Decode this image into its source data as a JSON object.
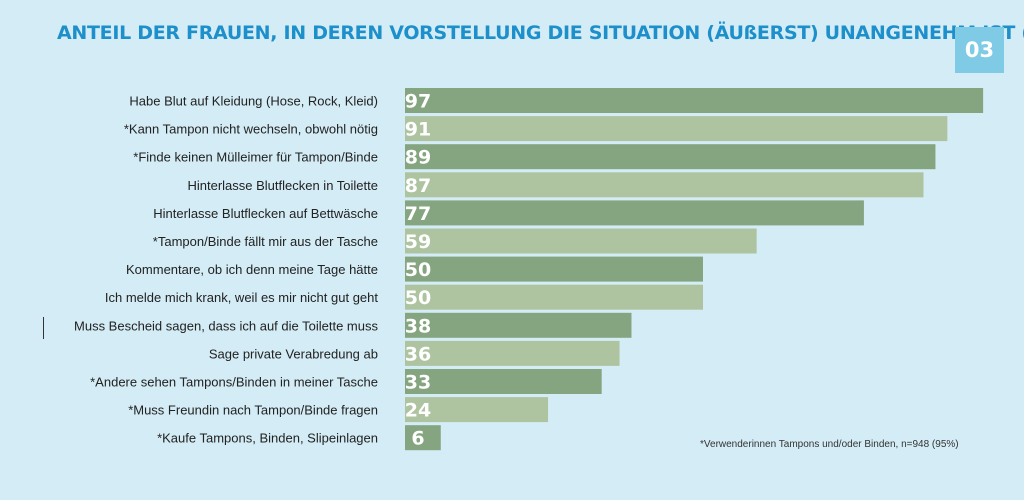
{
  "header": {
    "title": "ANTEIL DER FRAUEN, IN DEREN VORSTELLUNG DIE SITUATION (ÄUßERST) UNANGENEHM IST (%)",
    "badge": "03"
  },
  "footnote": "*Verwenderinnen Tampons und/oder Binden, n=948 (95%)",
  "colors": {
    "background": "#d3ecf5",
    "title": "#1d8fcb",
    "badge": "#7fcbe5",
    "bar_dark": "#84a57f",
    "bar_light": "#aec4a1",
    "bar_label": "#ffffff",
    "category_text": "#222222"
  },
  "chart_data": {
    "type": "bar",
    "orientation": "horizontal",
    "title": "ANTEIL DER FRAUEN, IN DEREN VORSTELLUNG DIE SITUATION (ÄUßERST) UNANGENEHM IST (%)",
    "xlabel": "",
    "ylabel": "",
    "xlim": [
      0,
      100
    ],
    "grid": false,
    "legend": "none",
    "categories": [
      "Habe Blut auf Kleidung (Hose, Rock, Kleid)",
      "*Kann Tampon nicht wechseln, obwohl nötig",
      "*Finde keinen Mülleimer für Tampon/Binde",
      "Hinterlasse Blutflecken in Toilette",
      "Hinterlasse Blutflecken auf Bettwäsche",
      "*Tampon/Binde fällt mir aus der Tasche",
      "Kommentare, ob ich denn meine Tage hätte",
      "Ich melde mich krank, weil es mir nicht gut geht",
      "Muss Bescheid sagen, dass ich auf die Toilette muss",
      "Sage private Verabredung ab",
      "*Andere sehen Tampons/Binden in meiner Tasche",
      "*Muss Freundin nach Tampon/Binde fragen",
      "*Kaufe Tampons, Binden, Slipeinlagen"
    ],
    "values": [
      97,
      91,
      89,
      87,
      77,
      59,
      50,
      50,
      38,
      36,
      33,
      24,
      6
    ]
  }
}
